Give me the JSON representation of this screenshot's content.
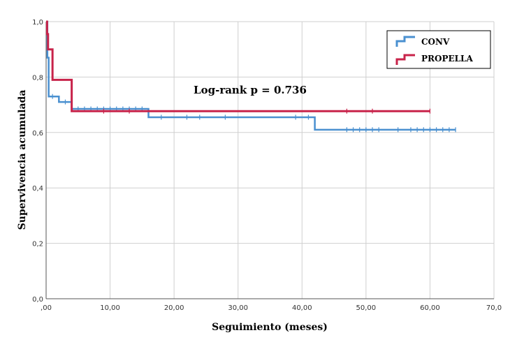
{
  "chart_data": {
    "type": "line",
    "subtype": "kaplan-meier step",
    "xlabel": "Seguimiento (meses)",
    "ylabel": "Supervivencia acumulada",
    "xlim": [
      0,
      70
    ],
    "ylim": [
      0,
      1
    ],
    "x_ticks": [
      ",00",
      "10,00",
      "20,00",
      "30,00",
      "40,00",
      "50,00",
      "60,00",
      "70,0"
    ],
    "y_ticks": [
      "0,0",
      "0,2",
      "0,4",
      "0,6",
      "0,8",
      "1,0"
    ],
    "grid": true,
    "legend_position": "top-right",
    "annotation": "Log-rank p = 0.736",
    "series": [
      {
        "name": "CONV",
        "color": "#4a90d0",
        "steps": [
          [
            0,
            1.0
          ],
          [
            0.2,
            0.87
          ],
          [
            0.4,
            0.73
          ],
          [
            2,
            0.71
          ],
          [
            4,
            0.685
          ],
          [
            16,
            0.655
          ],
          [
            42,
            0.61
          ],
          [
            64,
            0.61
          ]
        ],
        "censored": [
          [
            1,
            0.73
          ],
          [
            3,
            0.71
          ],
          [
            5,
            0.685
          ],
          [
            6,
            0.685
          ],
          [
            7,
            0.685
          ],
          [
            8,
            0.685
          ],
          [
            9,
            0.685
          ],
          [
            10,
            0.685
          ],
          [
            11,
            0.685
          ],
          [
            12,
            0.685
          ],
          [
            13,
            0.685
          ],
          [
            14,
            0.685
          ],
          [
            15,
            0.685
          ],
          [
            18,
            0.655
          ],
          [
            22,
            0.655
          ],
          [
            24,
            0.655
          ],
          [
            28,
            0.655
          ],
          [
            39,
            0.655
          ],
          [
            41,
            0.655
          ],
          [
            47,
            0.61
          ],
          [
            48,
            0.61
          ],
          [
            49,
            0.61
          ],
          [
            50,
            0.61
          ],
          [
            51,
            0.61
          ],
          [
            52,
            0.61
          ],
          [
            55,
            0.61
          ],
          [
            57,
            0.61
          ],
          [
            58,
            0.61
          ],
          [
            59,
            0.61
          ],
          [
            60,
            0.61
          ],
          [
            61,
            0.61
          ],
          [
            62,
            0.61
          ],
          [
            63,
            0.61
          ],
          [
            64,
            0.61
          ]
        ]
      },
      {
        "name": "PROPELLA",
        "color": "#c8234a",
        "steps": [
          [
            0,
            1.0
          ],
          [
            0.15,
            0.955
          ],
          [
            0.3,
            0.9
          ],
          [
            1,
            0.79
          ],
          [
            4,
            0.677
          ],
          [
            60,
            0.677
          ]
        ],
        "censored": [
          [
            9,
            0.677
          ],
          [
            13,
            0.677
          ],
          [
            47,
            0.677
          ],
          [
            51,
            0.677
          ],
          [
            60,
            0.677
          ]
        ]
      }
    ]
  }
}
